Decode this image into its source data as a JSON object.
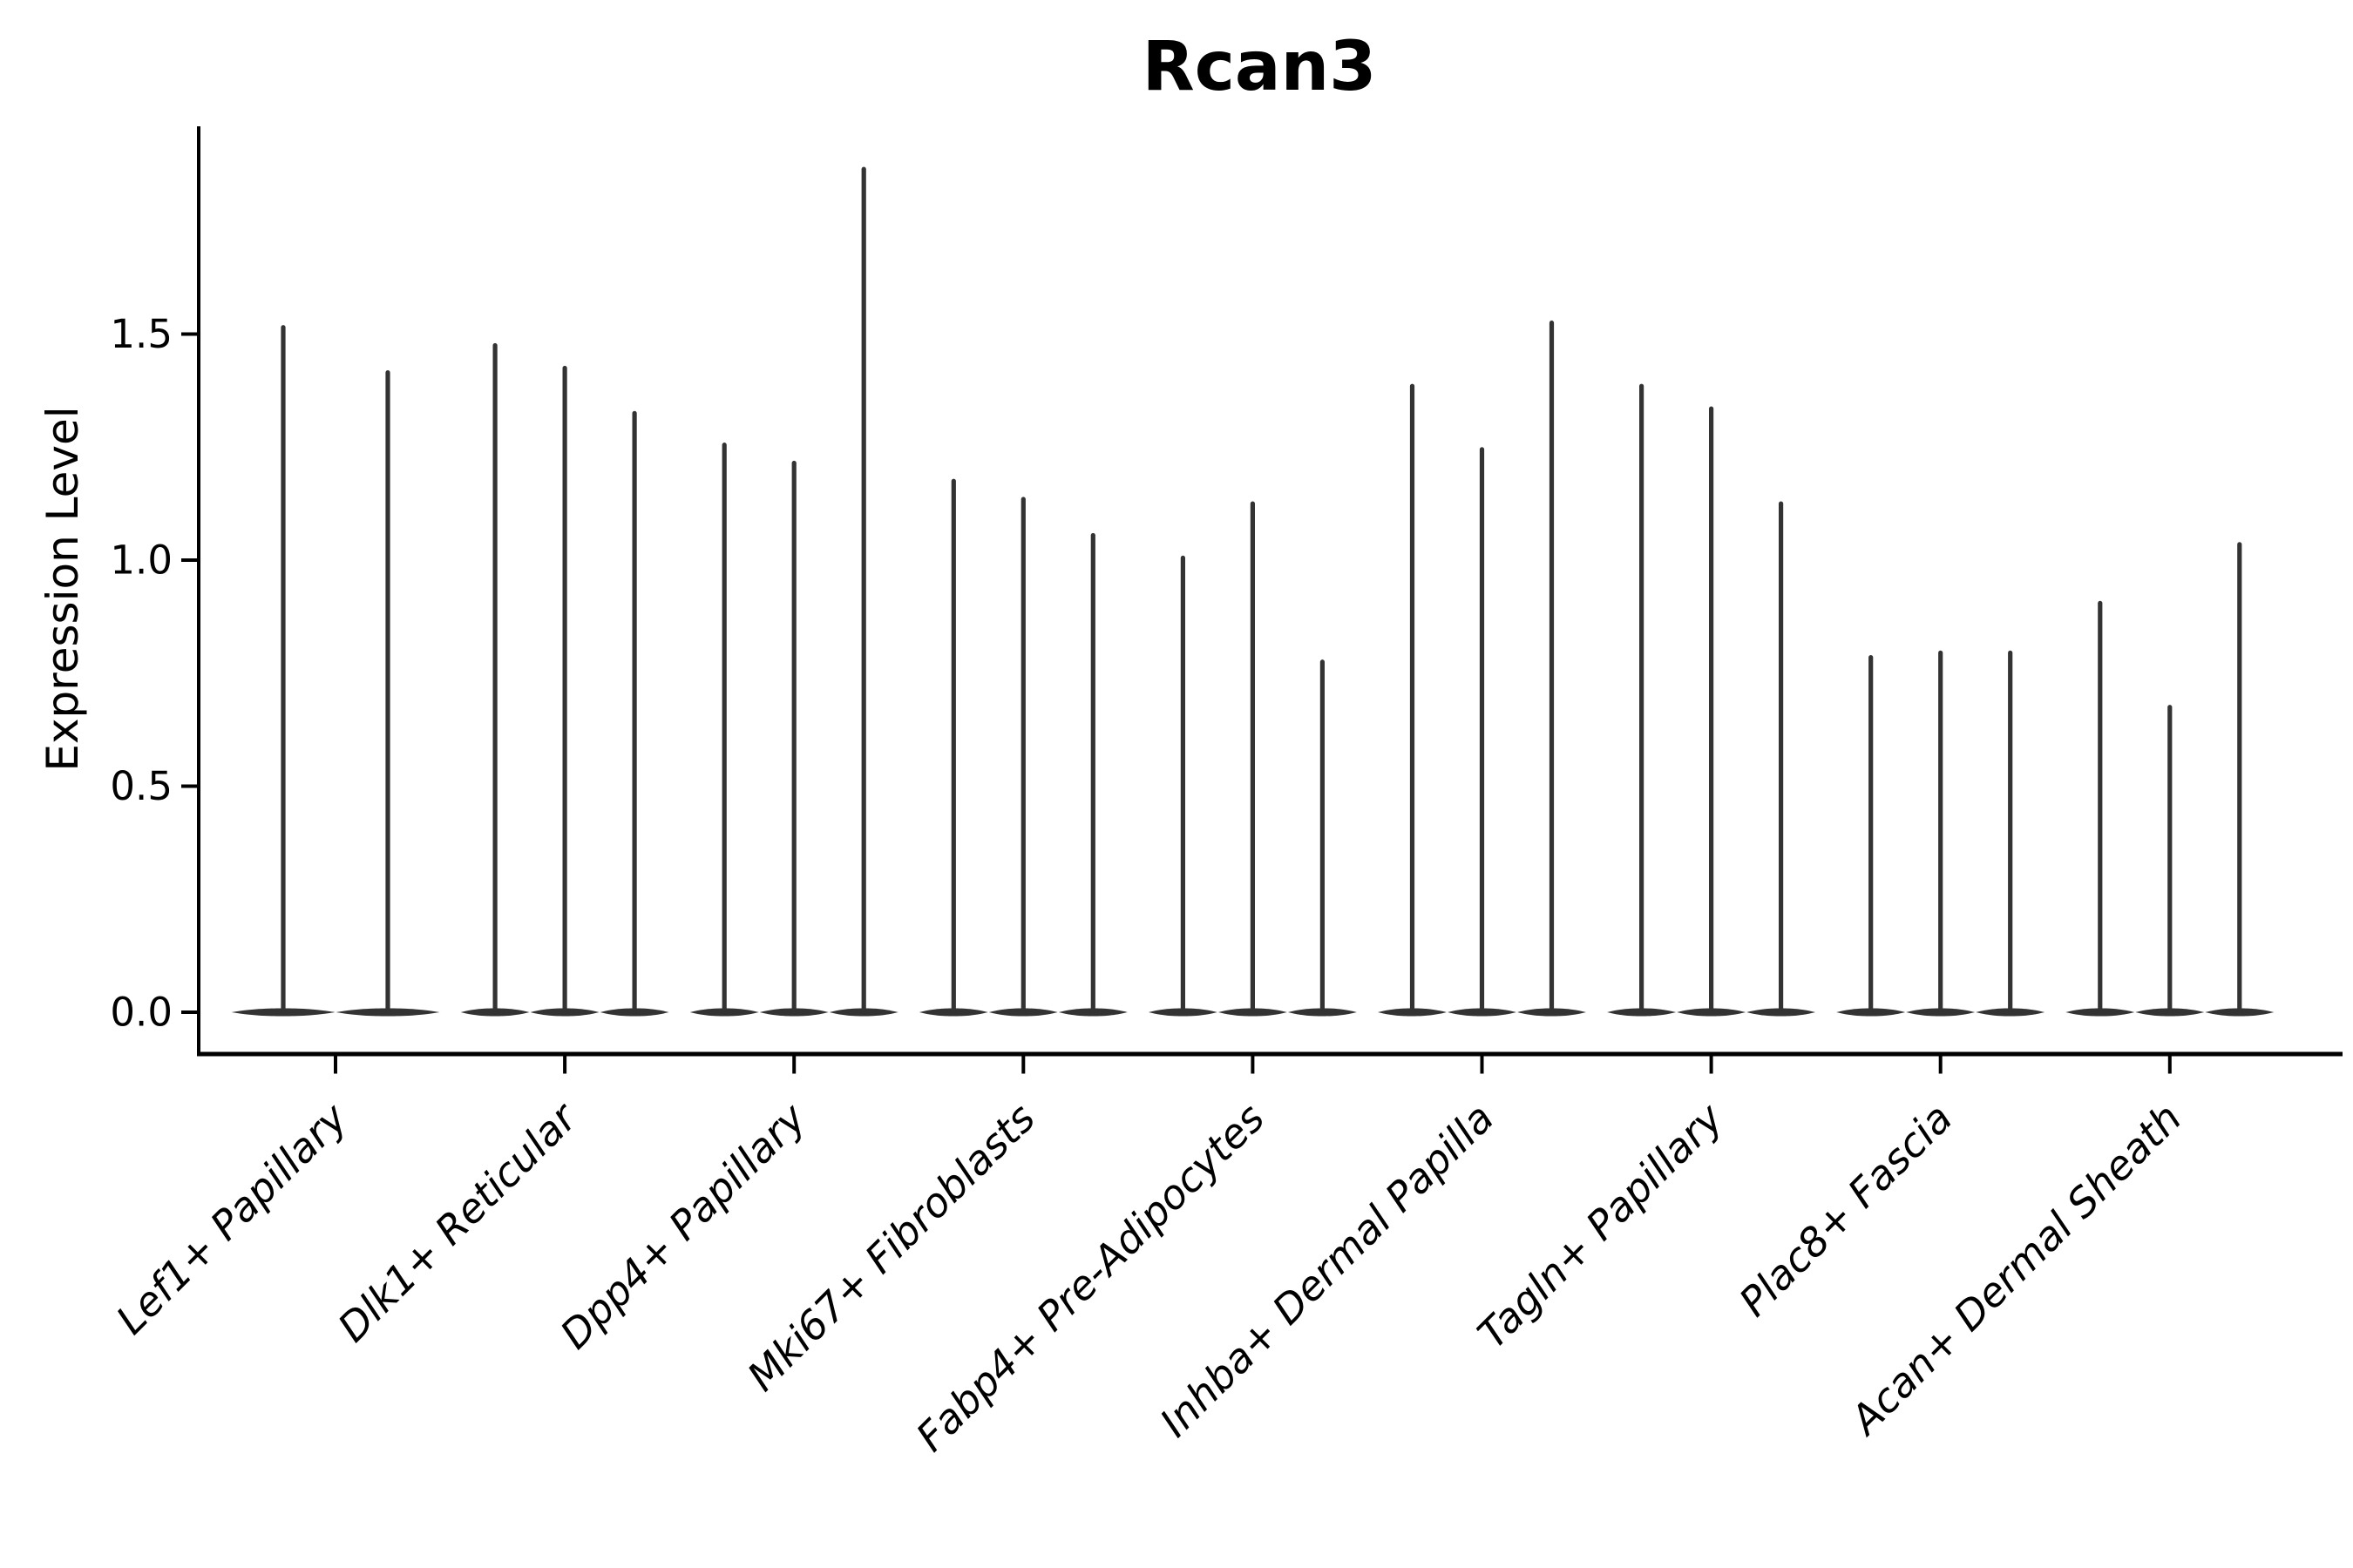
{
  "title": "Rcan3",
  "ylabel": "Expression Level",
  "chart_data": {
    "type": "violin",
    "title": "Rcan3",
    "xlabel": "",
    "ylabel": "Expression Level",
    "ylim": [
      -0.09,
      1.96
    ],
    "yticks": [
      0.0,
      0.5,
      1.0,
      1.5
    ],
    "ytick_labels": [
      "0.0",
      "0.5",
      "1.0",
      "1.5"
    ],
    "grid": false,
    "legend": "none",
    "violin_style": "sparse expression: wide flat base at 0 with a thin vertical spike up to the maximum value",
    "violin_color": "#333333",
    "axis_color": "#000000",
    "background_color": "#ffffff",
    "categories": [
      "Lef1+ Papillary",
      "Dlk1+ Reticular",
      "Dpp4+ Papillary",
      "Mki67+ Fibroblasts",
      "Fabp4+ Pre-Adipocytes",
      "Inhba+ Dermal Papilla",
      "Tagln+ Papillary",
      "Plac8+ Fascia",
      "Acan+ Dermal Sheath"
    ],
    "groups": [
      {
        "category": "Lef1+ Papillary",
        "violin_maxima": [
          1.52,
          1.42
        ]
      },
      {
        "category": "Dlk1+ Reticular",
        "violin_maxima": [
          1.48,
          1.43,
          1.33
        ]
      },
      {
        "category": "Dpp4+ Papillary",
        "violin_maxima": [
          1.26,
          1.22,
          1.87
        ]
      },
      {
        "category": "Mki67+ Fibroblasts",
        "violin_maxima": [
          1.18,
          1.14,
          1.06
        ]
      },
      {
        "category": "Fabp4+ Pre-Adipocytes",
        "violin_maxima": [
          1.01,
          1.13,
          0.78
        ]
      },
      {
        "category": "Inhba+ Dermal Papilla",
        "violin_maxima": [
          1.39,
          1.25,
          1.53
        ]
      },
      {
        "category": "Tagln+ Papillary",
        "violin_maxima": [
          1.39,
          1.34,
          1.13
        ]
      },
      {
        "category": "Plac8+ Fascia",
        "violin_maxima": [
          0.79,
          0.8,
          0.8
        ]
      },
      {
        "category": "Acan+ Dermal Sheath",
        "violin_maxima": [
          0.91,
          0.68,
          1.04
        ]
      }
    ]
  }
}
